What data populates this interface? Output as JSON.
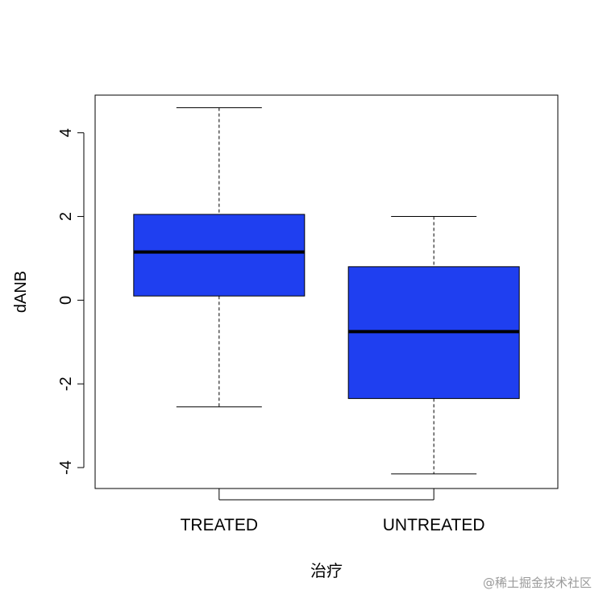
{
  "chart_data": {
    "type": "boxplot",
    "title": "",
    "xlabel": "治疗",
    "ylabel": "dANB",
    "ylim": [
      -4.5,
      4.9
    ],
    "yticks": [
      -4,
      -2,
      0,
      2,
      4
    ],
    "categories": [
      "TREATED",
      "UNTREATED"
    ],
    "boxes": [
      {
        "category": "TREATED",
        "whisker_low": -2.55,
        "q1": 0.1,
        "median": 1.15,
        "q3": 2.05,
        "whisker_high": 4.6
      },
      {
        "category": "UNTREATED",
        "whisker_low": -4.15,
        "q1": -2.35,
        "median": -0.75,
        "q3": 0.8,
        "whisker_high": 2.0
      }
    ],
    "box_color": "#1f3ff0",
    "grid": false,
    "legend": "none"
  },
  "watermark": "@稀土掘金技术社区"
}
